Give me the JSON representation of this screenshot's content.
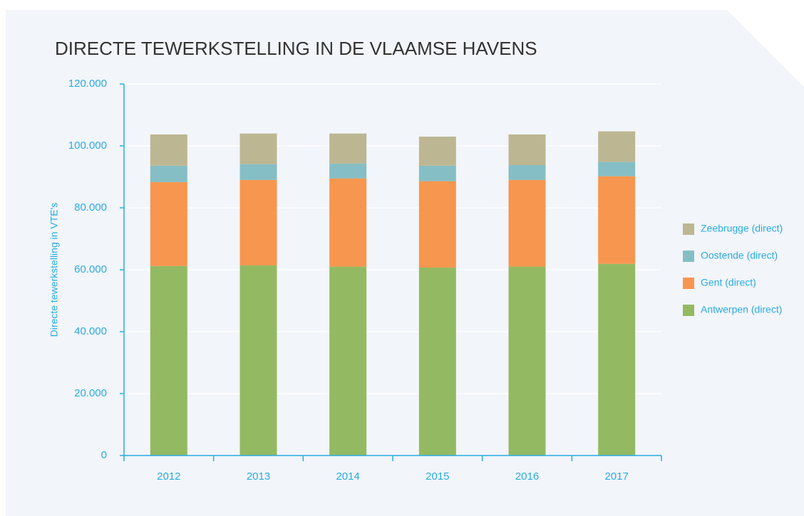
{
  "chart_data": {
    "type": "stacked_bar",
    "title": "DIRECTE TEWERKSTELLING IN DE VLAAMSE HAVENS",
    "y_label": "Directe tewerkstelling in VTE's",
    "categories": [
      "2012",
      "2013",
      "2014",
      "2015",
      "2016",
      "2017"
    ],
    "series": [
      {
        "name": "Antwerpen (direct)",
        "color": "#93ba62",
        "values": [
          61200,
          61400,
          61000,
          60700,
          61000,
          61900
        ]
      },
      {
        "name": "Gent (direct)",
        "color": "#f7964e",
        "values": [
          27100,
          27600,
          28500,
          27900,
          28000,
          28300
        ]
      },
      {
        "name": "Oostende (direct)",
        "color": "#86bec5",
        "values": [
          5300,
          5100,
          4800,
          5000,
          4800,
          4600
        ]
      },
      {
        "name": "Zeebrugge (direct)",
        "color": "#bcb792",
        "values": [
          10100,
          9900,
          9700,
          9400,
          9900,
          9900
        ]
      }
    ],
    "ylim": [
      0,
      120000
    ],
    "yticks": [
      0,
      {
        "value": 20000,
        "label": "20.000"
      },
      {
        "value": 40000,
        "label": "40.000"
      },
      {
        "value": 60000,
        "label": "60.000"
      },
      {
        "value": 80000,
        "label": "80.000"
      },
      {
        "value": 100000,
        "label": "100.000"
      },
      {
        "value": 120000,
        "label": "120.000"
      }
    ],
    "grid": true
  }
}
